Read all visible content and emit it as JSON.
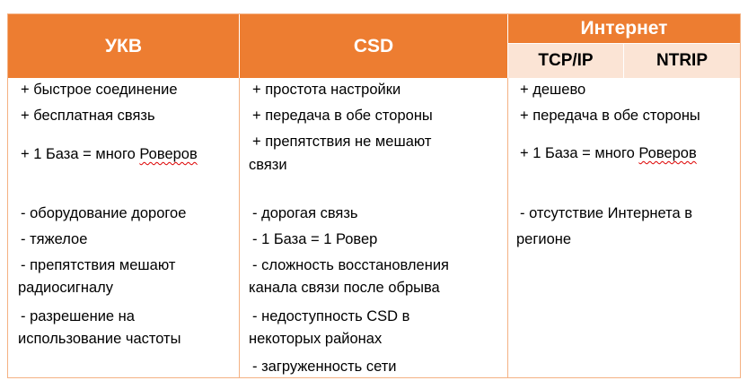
{
  "header": {
    "ukv": "УКВ",
    "csd": "CSD",
    "internet": "Интернет",
    "tcpip": "TCP/IP",
    "ntrip": "NTRIP"
  },
  "ukv": {
    "pros": [
      "+ быстрое соединение",
      "+ бесплатная связь",
      "+ 1 База = много ",
      "Роверов"
    ],
    "cons": [
      "- оборудование дорогое",
      "- тяжелое",
      "-  препятствия мешают",
      "радиосигналу",
      "- разрешение на",
      "использование частоты"
    ]
  },
  "csd": {
    "pros": [
      "+ простота настройки",
      "+ передача в обе стороны",
      "+ препятствия не мешают",
      "связи"
    ],
    "cons": [
      "- дорогая связь",
      "- 1 База = 1 Ровер",
      "- сложность восстановления",
      "канала связи после обрыва",
      "- недоступность CSD в",
      "некоторых районах",
      "- загруженность сети"
    ]
  },
  "internet": {
    "pros": [
      "+ дешево",
      "+ передача в обе стороны",
      "+ 1 База = много ",
      "Роверов"
    ],
    "cons": [
      "- отсутствие Интернета в",
      "регионе"
    ]
  },
  "colors": {
    "header": "#ED7D31",
    "subheader": "#FBE4D5",
    "border": "#F4B183"
  }
}
